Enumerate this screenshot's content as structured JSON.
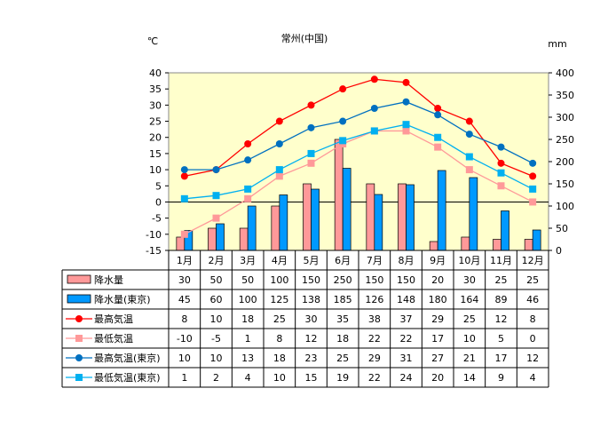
{
  "chart_data": {
    "type": "bar",
    "title": "常州(中国)",
    "left_unit": "℃",
    "right_unit": "mm",
    "categories": [
      "1月",
      "2月",
      "3月",
      "4月",
      "5月",
      "6月",
      "7月",
      "8月",
      "9月",
      "10月",
      "11月",
      "12月"
    ],
    "y_left": {
      "min": -15,
      "max": 40,
      "step": 5
    },
    "y_right": {
      "min": 0,
      "max": 400,
      "step": 50
    },
    "bar_series": [
      {
        "name": "降水量",
        "color": "#ff9999",
        "values": [
          30,
          50,
          50,
          100,
          150,
          250,
          150,
          150,
          20,
          30,
          25,
          25
        ]
      },
      {
        "name": "降水量(東京)",
        "color": "#0099ff",
        "values": [
          45,
          60,
          100,
          125,
          138,
          185,
          126,
          148,
          180,
          164,
          89,
          46
        ]
      }
    ],
    "line_series": [
      {
        "name": "最高気温",
        "color": "#ff0000",
        "marker": "circle",
        "values": [
          8,
          10,
          18,
          25,
          30,
          35,
          38,
          37,
          29,
          25,
          12,
          8
        ]
      },
      {
        "name": "最低気温",
        "color": "#ff9999",
        "marker": "square",
        "values": [
          -10,
          -5,
          1,
          8,
          12,
          18,
          22,
          22,
          17,
          10,
          5,
          0
        ]
      },
      {
        "name": "最高気温(東京)",
        "color": "#0070c0",
        "marker": "circle",
        "values": [
          10,
          10,
          13,
          18,
          23,
          25,
          29,
          31,
          27,
          21,
          17,
          12
        ]
      },
      {
        "name": "最低気温(東京)",
        "color": "#00b0f0",
        "marker": "square",
        "values": [
          1,
          2,
          4,
          10,
          15,
          19,
          22,
          24,
          20,
          14,
          9,
          4
        ]
      }
    ],
    "plot_background": "#ffffcc",
    "grid": false,
    "legend": "table-below"
  }
}
